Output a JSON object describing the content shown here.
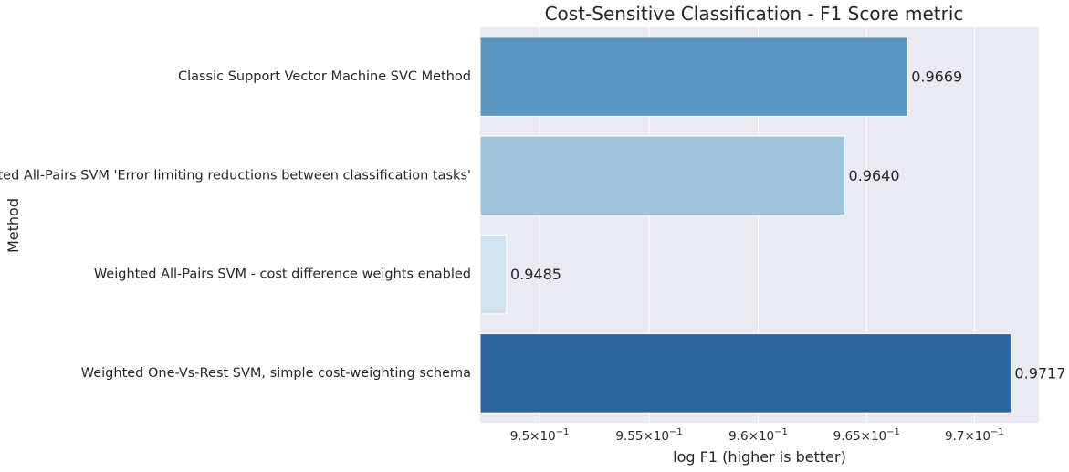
{
  "chart_data": {
    "type": "bar",
    "orientation": "horizontal",
    "title": "Cost-Sensitive Classification - F1 Score metric",
    "xlabel": "log F1 (higher is better)",
    "ylabel": "Method",
    "x_scale": "log",
    "xlim": [
      0.9473,
      0.973
    ],
    "xticks": [
      0.95,
      0.955,
      0.96,
      0.965,
      0.97
    ],
    "xtick_labels": [
      {
        "mantissa": "9.5",
        "exp": "−1"
      },
      {
        "mantissa": "9.55",
        "exp": "−1"
      },
      {
        "mantissa": "9.6",
        "exp": "−1"
      },
      {
        "mantissa": "9.65",
        "exp": "−1"
      },
      {
        "mantissa": "9.7",
        "exp": "−1"
      }
    ],
    "grid": true,
    "categories": [
      "Classic Support Vector Machine SVC Method",
      "Weighted All-Pairs SVM 'Error limiting reductions between classification tasks'",
      "Weighted All-Pairs SVM - cost difference weights enabled",
      "Weighted One-Vs-Rest SVM, simple cost-weighting schema"
    ],
    "values": [
      0.9669,
      0.964,
      0.9485,
      0.9717
    ],
    "value_labels": [
      "0.9669",
      "0.9640",
      "0.9485",
      "0.9717"
    ],
    "colors": [
      "#5b97c0",
      "#9fc3da",
      "#d2e3f0",
      "#2c659c"
    ],
    "background_color": "#eaeaf2"
  }
}
